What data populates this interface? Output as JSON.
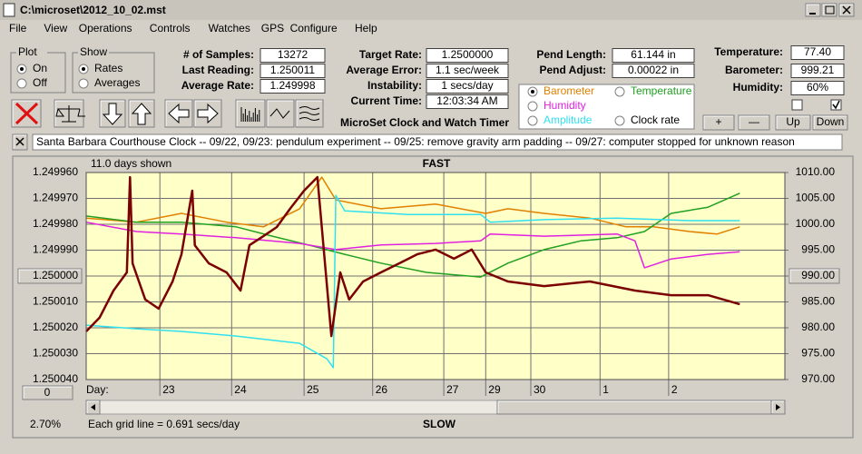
{
  "window": {
    "title": "C:\\microset\\2012_10_02.mst"
  },
  "menu": [
    "File",
    "View",
    "Operations",
    "Controls",
    "Watches",
    "GPS",
    "Configure",
    "Help"
  ],
  "plot": {
    "label": "Plot",
    "options": [
      "On",
      "Off"
    ]
  },
  "show": {
    "label": "Show",
    "options": [
      "Rates",
      "Averages"
    ]
  },
  "fields": [
    {
      "label": "# of Samples:",
      "value": "13272"
    },
    {
      "label": "Last Reading:",
      "value": "1.250011"
    },
    {
      "label": "Average Rate:",
      "value": "1.249998"
    },
    {
      "label": "Target Rate:",
      "value": "1.2500000"
    },
    {
      "label": "Average Error:",
      "value": "1.1 sec/week"
    },
    {
      "label": "Instability:",
      "value": "1 secs/day"
    },
    {
      "label": "Current Time:",
      "value": "12:03:34 AM"
    },
    {
      "label": "Pend Length:",
      "value": "61.144 in"
    },
    {
      "label": "Pend Adjust:",
      "value": "0.00022 in"
    },
    {
      "label": "Temperature:",
      "value": "77.40"
    },
    {
      "label": "Barometer:",
      "value": "999.21"
    },
    {
      "label": "Humidity:",
      "value": "60%"
    }
  ],
  "app_title": "MicroSet Clock and Watch Timer",
  "buttons": [
    "+",
    "—",
    "Up",
    "Down"
  ],
  "note": "Santa Barbara Courthouse Clock  -- 09/22, 09/23: pendulum experiment  -- 09/25: remove gravity arm padding  -- 09/27: computer stopped for unknown reason",
  "chart_data": {
    "type": "line",
    "days_shown": "11.0 days shown",
    "top_label": "FAST",
    "bottom_label": "SLOW",
    "x_label": "Day:",
    "footer": "Each grid line = 0.691 secs/day",
    "scroll_button": "0",
    "percent": "2.70%",
    "xlim": [
      0,
      11
    ],
    "xticks": [
      {
        "value": 1.16,
        "label": "23"
      },
      {
        "value": 2.29,
        "label": "24"
      },
      {
        "value": 3.43,
        "label": "25"
      },
      {
        "value": 4.51,
        "label": "26"
      },
      {
        "value": 5.63,
        "label": "27"
      },
      {
        "value": 6.29,
        "label": "29"
      },
      {
        "value": 7.0,
        "label": "30"
      },
      {
        "value": 8.09,
        "label": "1"
      },
      {
        "value": 9.17,
        "label": "2"
      }
    ],
    "ylim": [
      1.25004,
      1.24996
    ],
    "yticks": [
      {
        "value": 1.24996,
        "label": "1.249960"
      },
      {
        "value": 1.24997,
        "label": "1.249970"
      },
      {
        "value": 1.24998,
        "label": "1.249980"
      },
      {
        "value": 1.24999,
        "label": "1.249990"
      },
      {
        "value": 1.25,
        "label": "1.250000"
      },
      {
        "value": 1.25001,
        "label": "1.250010"
      },
      {
        "value": 1.25002,
        "label": "1.250020"
      },
      {
        "value": 1.25003,
        "label": "1.250030"
      },
      {
        "value": 1.25004,
        "label": "1.250040"
      }
    ],
    "y2lim": [
      970,
      1010
    ],
    "y2ticks": [
      {
        "value": 1010,
        "label": "1010.00"
      },
      {
        "value": 1005,
        "label": "1005.00"
      },
      {
        "value": 1000,
        "label": "1000.00"
      },
      {
        "value": 995,
        "label": "995.00"
      },
      {
        "value": 990,
        "label": "990.00"
      },
      {
        "value": 985,
        "label": "985.00"
      },
      {
        "value": 980,
        "label": "980.00"
      },
      {
        "value": 975,
        "label": "975.00"
      },
      {
        "value": 970,
        "label": "970.00"
      }
    ],
    "grid": true,
    "series": [
      {
        "name": "Barometer",
        "color": "#e08000",
        "axis": "y2",
        "x": [
          0,
          0.79,
          1.5,
          2.21,
          2.79,
          3.36,
          3.71,
          3.93,
          4.64,
          5.5,
          6.29,
          6.64,
          7.21,
          7.93,
          8.5,
          8.93,
          9.5,
          9.93,
          10.29
        ],
        "values": [
          1001.2,
          1000.4,
          1002.1,
          1000.4,
          999.5,
          1003.0,
          1009.1,
          1004.7,
          1003.0,
          1003.9,
          1002.1,
          1003.0,
          1002.1,
          1001.2,
          999.5,
          999.5,
          998.6,
          998.1,
          999.5
        ]
      },
      {
        "name": "Temperature",
        "color": "#20a020",
        "axis": "y2",
        "x": [
          0,
          0.79,
          1.5,
          2.36,
          2.93,
          3.5,
          4.07,
          4.64,
          5.36,
          6.21,
          6.64,
          7.21,
          7.79,
          8.36,
          8.79,
          9.21,
          9.79,
          10.29
        ],
        "values": [
          1001.6,
          1000.4,
          1000.4,
          999.5,
          997.7,
          996.0,
          994.2,
          992.5,
          990.7,
          989.8,
          992.5,
          995.1,
          996.8,
          997.4,
          998.6,
          1002.1,
          1003.3,
          1006.0
        ]
      },
      {
        "name": "Humidity",
        "color": "#e020e0",
        "axis": "y2",
        "x": [
          0,
          0.79,
          1.5,
          2.36,
          3.36,
          3.93,
          4.64,
          5.5,
          6.21,
          6.36,
          7.21,
          8.36,
          8.64,
          8.79,
          9.21,
          9.79,
          10.29
        ],
        "values": [
          1000.4,
          998.6,
          998.1,
          997.4,
          996.3,
          995.1,
          996.0,
          996.3,
          996.8,
          998.1,
          997.7,
          998.1,
          996.8,
          991.6,
          993.3,
          994.2,
          994.7
        ]
      },
      {
        "name": "Amplitude",
        "color": "#30e0f0",
        "axis": "y2",
        "x": [
          0,
          0.79,
          1.5,
          2.36,
          3.36,
          3.79,
          3.89,
          3.93,
          4.07,
          5.07,
          6.21,
          6.36,
          7.21,
          8.36,
          9.5,
          10.29
        ],
        "values": [
          980.5,
          979.8,
          979.3,
          978.4,
          977.0,
          974.0,
          972.3,
          1005.6,
          1002.6,
          1001.9,
          1001.9,
          1000.4,
          1000.9,
          1001.2,
          1000.7,
          1000.7
        ]
      },
      {
        "name": "Clock rate",
        "color": "#7b0000",
        "x": [
          0,
          0.21,
          0.43,
          0.64,
          0.69,
          0.73,
          0.93,
          1.14,
          1.36,
          1.5,
          1.67,
          1.71,
          1.93,
          2.21,
          2.43,
          2.57,
          2.79,
          3.0,
          3.21,
          3.43,
          3.64,
          3.86,
          4.0,
          4.14,
          4.36,
          4.64,
          4.93,
          5.21,
          5.5,
          5.79,
          6.07,
          6.29,
          6.64,
          7.21,
          7.93,
          8.64,
          9.21,
          9.79,
          10.29
        ],
        "values": [
          1.2500214,
          1.2500161,
          1.2500056,
          1.2499986,
          1.2499618,
          1.2499951,
          1.2500091,
          1.2500126,
          1.2500021,
          1.2499916,
          1.249967,
          1.2499881,
          1.2499951,
          1.2499986,
          1.2500056,
          1.2499881,
          1.2499846,
          1.2499811,
          1.249974,
          1.249967,
          1.2499618,
          1.2500232,
          1.2499986,
          1.2500091,
          1.2500021,
          1.2499986,
          1.2499951,
          1.2499916,
          1.2499898,
          1.2499933,
          1.2499898,
          1.2499986,
          1.2500021,
          1.2500039,
          1.2500021,
          1.2500056,
          1.2500074,
          1.2500074,
          1.2500109
        ]
      }
    ],
    "legend_checked": "Barometer"
  }
}
